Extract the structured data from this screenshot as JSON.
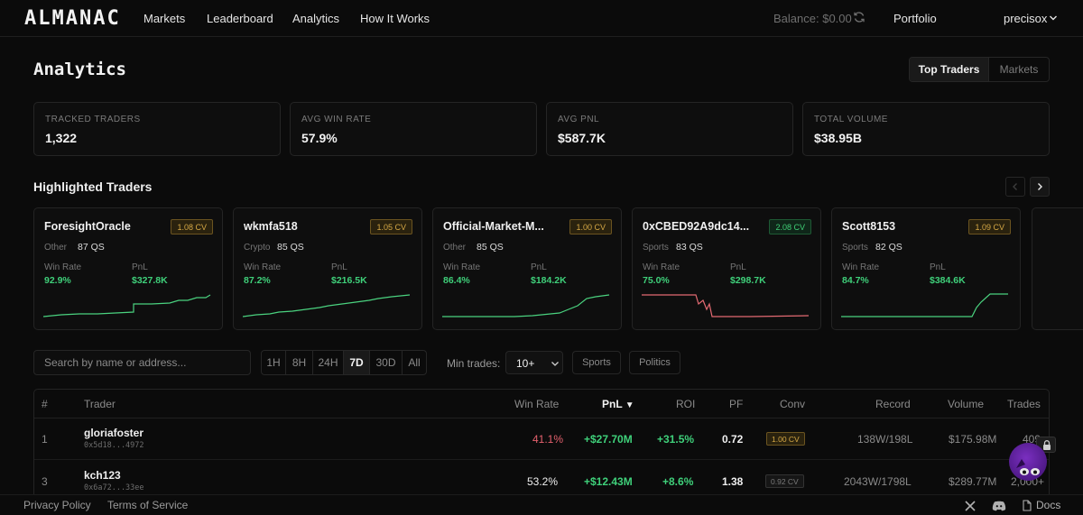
{
  "nav": {
    "logo": "ALMANAC",
    "links": [
      "Markets",
      "Leaderboard",
      "Analytics",
      "How It Works"
    ],
    "balance_label": "Balance:",
    "balance_value": "$0.00",
    "portfolio": "Portfolio",
    "username": "precisox"
  },
  "page": {
    "title": "Analytics",
    "tabs": [
      "Top Traders",
      "Markets"
    ],
    "active_tab": "Top Traders"
  },
  "stats": [
    {
      "label": "TRACKED TRADERS",
      "value": "1,322"
    },
    {
      "label": "AVG WIN RATE",
      "value": "57.9%"
    },
    {
      "label": "AVG PNL",
      "value": "$587.7K"
    },
    {
      "label": "TOTAL VOLUME",
      "value": "$38.95B"
    }
  ],
  "highlighted": {
    "title": "Highlighted Traders",
    "win_rate_label": "Win Rate",
    "pnl_label": "PnL",
    "cards": [
      {
        "name": "ForesightOracle",
        "cv": "1.08 CV",
        "cv_color": "gold",
        "category": "Other",
        "qs": "87 QS",
        "win_rate": "92.9%",
        "pnl": "$327.8K",
        "trend": "up",
        "line_color": "#4ad27f"
      },
      {
        "name": "wkmfa518",
        "cv": "1.05 CV",
        "cv_color": "gold",
        "category": "Crypto",
        "qs": "85 QS",
        "win_rate": "87.2%",
        "pnl": "$216.5K",
        "trend": "up",
        "line_color": "#4ad27f"
      },
      {
        "name": "Official-Market-M...",
        "cv": "1.00 CV",
        "cv_color": "gold",
        "category": "Other",
        "qs": "85 QS",
        "win_rate": "86.4%",
        "pnl": "$184.2K",
        "trend": "up",
        "line_color": "#4ad27f"
      },
      {
        "name": "0xCBED92A9dc14...",
        "cv": "2.08 CV",
        "cv_color": "green",
        "category": "Sports",
        "qs": "83 QS",
        "win_rate": "75.0%",
        "pnl": "$298.7K",
        "trend": "down",
        "line_color": "#e36a72"
      },
      {
        "name": "Scott8153",
        "cv": "1.09 CV",
        "cv_color": "gold",
        "category": "Sports",
        "qs": "82 QS",
        "win_rate": "84.7%",
        "pnl": "$384.6K",
        "trend": "up",
        "line_color": "#4ad27f"
      }
    ]
  },
  "filters": {
    "search_placeholder": "Search by name or address...",
    "timeframes": [
      "1H",
      "8H",
      "24H",
      "7D",
      "30D",
      "All"
    ],
    "active_timeframe": "7D",
    "min_trades_label": "Min trades:",
    "min_trades_value": "10+",
    "category_chips": [
      "Sports",
      "Politics"
    ]
  },
  "table": {
    "columns": [
      "#",
      "Trader",
      "Win Rate",
      "PnL",
      "ROI",
      "PF",
      "Conv",
      "Record",
      "Volume",
      "Trades"
    ],
    "sort_indicator": "▼",
    "rows": [
      {
        "rank": "1",
        "name": "gloriafoster",
        "address": "0x5d18...4972",
        "win_rate": "41.1%",
        "win_color": "red",
        "pnl": "+$27.70M",
        "roi": "+31.5%",
        "pf": "0.72",
        "conv": "1.00 CV",
        "conv_color": "gold",
        "record": "138W/198L",
        "volume": "$175.98M",
        "trades": "409"
      },
      {
        "rank": "3",
        "name": "kch123",
        "address": "0x6a72...33ee",
        "win_rate": "53.2%",
        "win_color": "white",
        "pnl": "+$12.43M",
        "roi": "+8.6%",
        "pf": "1.38",
        "conv": "0.92 CV",
        "conv_color": "gray",
        "record": "2043W/1798L",
        "volume": "$289.77M",
        "trades": "2,000+"
      }
    ]
  },
  "footer": {
    "links": [
      "Privacy Policy",
      "Terms of Service"
    ],
    "docs": "Docs"
  }
}
